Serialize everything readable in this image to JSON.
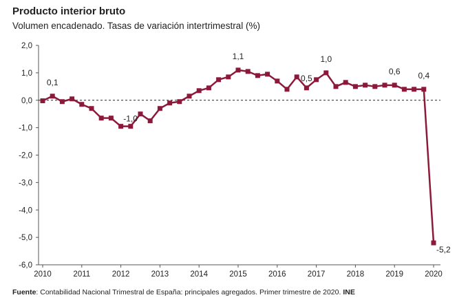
{
  "chart_data": {
    "type": "line",
    "title": "Producto interior bruto",
    "subtitle": "Volumen encadenado. Tasas de variación intertrimestral (%)",
    "ylim": [
      -6,
      2
    ],
    "y_ticks": [
      "2,0",
      "1,0",
      "0,0",
      "-1,0",
      "-2,0",
      "-3,0",
      "-4,0",
      "-5,0",
      "-6,0"
    ],
    "x_ticks": [
      "2010",
      "2011",
      "2012",
      "2013",
      "2014",
      "2015",
      "2016",
      "2017",
      "2018",
      "2019",
      "2020"
    ],
    "series": [
      {
        "color": "#8b1a3a",
        "values": [
          -0.02,
          0.15,
          -0.05,
          0.05,
          -0.15,
          -0.3,
          -0.65,
          -0.65,
          -0.95,
          -0.95,
          -0.5,
          -0.75,
          -0.3,
          -0.1,
          -0.05,
          0.15,
          0.35,
          0.45,
          0.75,
          0.85,
          1.1,
          1.05,
          0.9,
          0.95,
          0.7,
          0.4,
          0.85,
          0.45,
          0.75,
          1.0,
          0.5,
          0.65,
          0.5,
          0.55,
          0.5,
          0.55,
          0.55,
          0.4,
          0.4,
          0.4,
          -5.2
        ]
      }
    ],
    "data_labels": [
      {
        "index": 1,
        "text": "0,1"
      },
      {
        "index": 8,
        "text": "-1,0"
      },
      {
        "index": 20,
        "text": "1,1"
      },
      {
        "index": 27,
        "text": "0,5"
      },
      {
        "index": 29,
        "text": "1,0"
      },
      {
        "index": 36,
        "text": "0,6"
      },
      {
        "index": 39,
        "text": "0,4"
      },
      {
        "index": 40,
        "text": "-5,2"
      }
    ],
    "reference_line": {
      "y": 0,
      "style": "dashed"
    },
    "grid": false
  },
  "source": {
    "label": "Fuente",
    "text": ": Contabilidad Nacional Trimestral de España: principales agregados. Primer trimestre de 2020. ",
    "org": "INE"
  }
}
